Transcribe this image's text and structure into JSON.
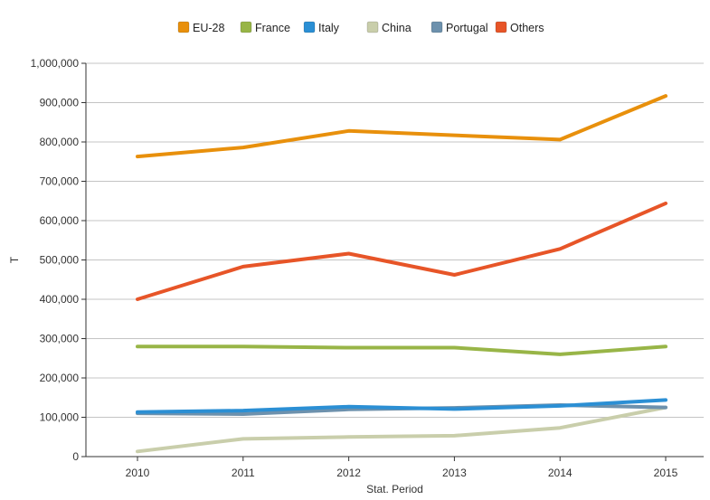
{
  "chart_data": {
    "type": "line",
    "title": "",
    "xlabel": "Stat. Period",
    "ylabel": "T",
    "categories": [
      "2010",
      "2011",
      "2012",
      "2013",
      "2014",
      "2015"
    ],
    "ylim": [
      0,
      1000000
    ],
    "yticks": [
      0,
      100000,
      200000,
      300000,
      400000,
      500000,
      600000,
      700000,
      800000,
      900000,
      1000000
    ],
    "ytick_labels": [
      "0",
      "100,000",
      "200,000",
      "300,000",
      "400,000",
      "500,000",
      "600,000",
      "700,000",
      "800,000",
      "900,000",
      "1,000,000"
    ],
    "grid": "horizontal",
    "legend_position": "top",
    "series": [
      {
        "name": "EU-28",
        "color": "#e8900c",
        "values": [
          763000,
          786000,
          828000,
          817000,
          806000,
          917000
        ]
      },
      {
        "name": "France",
        "color": "#98b547",
        "values": [
          280000,
          280000,
          277000,
          277000,
          260000,
          280000
        ]
      },
      {
        "name": "Italy",
        "color": "#2b8fd4",
        "values": [
          113000,
          117000,
          127000,
          121000,
          129000,
          144000
        ]
      },
      {
        "name": "China",
        "color": "#c9ceab",
        "values": [
          13000,
          45000,
          50000,
          53000,
          73000,
          125000
        ]
      },
      {
        "name": "Portugal",
        "color": "#6d91ad",
        "values": [
          110000,
          108000,
          120000,
          124000,
          131000,
          125000
        ]
      },
      {
        "name": "Others",
        "color": "#e75528",
        "values": [
          400000,
          483000,
          516000,
          462000,
          528000,
          644000
        ]
      }
    ]
  }
}
